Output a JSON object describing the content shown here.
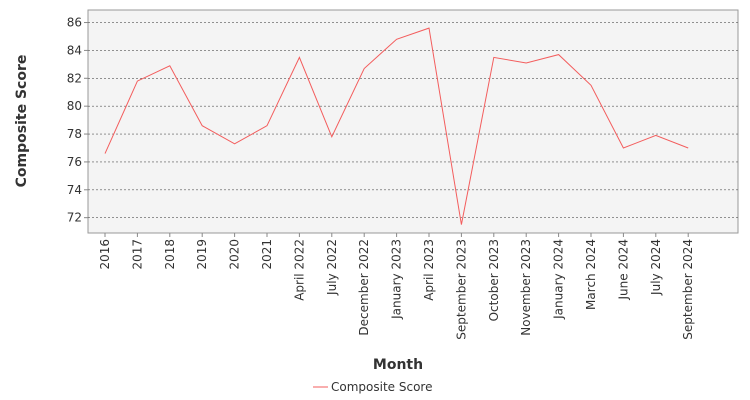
{
  "chart_data": {
    "type": "line",
    "xlabel": "Month",
    "ylabel": "Composite Score",
    "ylim": [
      70.9,
      86.9
    ],
    "yticks": [
      72,
      74,
      76,
      78,
      80,
      82,
      84,
      86
    ],
    "grid": true,
    "legend_position": "bottom",
    "categories": [
      "2016",
      "2017",
      "2018",
      "2019",
      "2020",
      "2021",
      "April 2022",
      "July 2022",
      "December 2022",
      "January 2023",
      "April 2023",
      "September 2023",
      "October 2023",
      "November 2023",
      "January 2024",
      "March 2024",
      "June 2024",
      "July 2024",
      "September 2024"
    ],
    "series": [
      {
        "name": "Composite Score",
        "color": "#f35d5d",
        "values": [
          76.6,
          81.8,
          82.9,
          78.6,
          77.3,
          78.6,
          83.5,
          77.8,
          82.7,
          84.8,
          85.6,
          71.5,
          83.5,
          83.1,
          83.7,
          81.5,
          77.0,
          77.9,
          77.0
        ]
      }
    ]
  }
}
